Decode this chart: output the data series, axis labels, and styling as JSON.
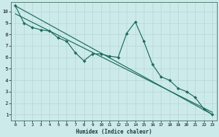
{
  "xlabel": "Humidex (Indice chaleur)",
  "bg_color": "#cceaea",
  "grid_color": "#b8d8d8",
  "line_color": "#1e6b5e",
  "xlim": [
    -0.5,
    23.5
  ],
  "ylim": [
    0.5,
    10.8
  ],
  "xtick_labels": [
    "0",
    "1",
    "2",
    "3",
    "4",
    "5",
    "6",
    "7",
    "8",
    "9",
    "10",
    "11",
    "12",
    "13",
    "14",
    "15",
    "16",
    "17",
    "18",
    "19",
    "20",
    "21",
    "22",
    "23"
  ],
  "ytick_labels": [
    "1",
    "2",
    "3",
    "4",
    "5",
    "6",
    "7",
    "8",
    "9",
    "10"
  ],
  "series1_x": [
    0,
    1,
    2,
    3,
    4,
    5,
    6,
    7,
    8,
    9,
    10,
    11,
    12,
    13,
    14,
    15,
    16,
    17,
    18,
    19,
    20,
    21,
    22,
    23
  ],
  "series1_y": [
    10.5,
    9.0,
    8.6,
    8.4,
    8.3,
    7.7,
    7.4,
    6.4,
    5.7,
    6.3,
    6.3,
    6.1,
    6.0,
    8.1,
    9.1,
    7.4,
    5.4,
    4.3,
    4.0,
    3.3,
    3.0,
    2.5,
    1.5,
    1.0
  ],
  "series2_x": [
    0,
    23
  ],
  "series2_y": [
    10.5,
    1.0
  ],
  "series3_x": [
    0,
    23
  ],
  "series3_y": [
    9.8,
    1.2
  ]
}
